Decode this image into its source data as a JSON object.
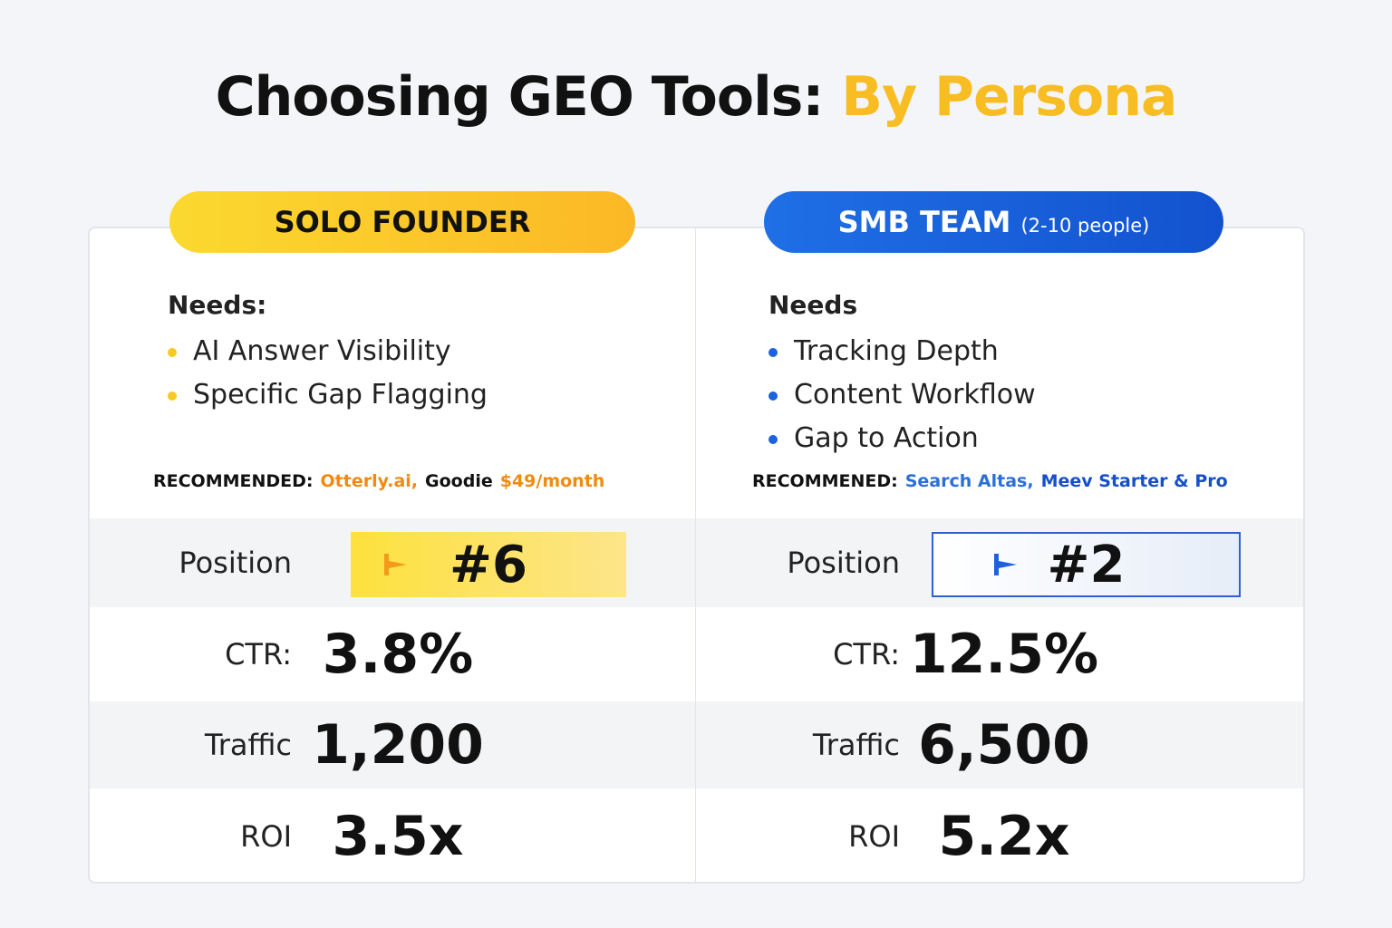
{
  "header": {
    "title": "Choosing GEO Tools:",
    "title_highlight": "By Persona"
  },
  "personas": [
    {
      "badge": "SOLO FOUNDER",
      "needs_label": "Needs:",
      "needs": [
        "AI Answer Visibility",
        "Specific Gap Flagging"
      ],
      "recommended_label": "RECOMMENDED:",
      "recommended": [
        "Otterly.ai,",
        "Goodie",
        "$49/month"
      ],
      "metrics": [
        [
          "Position",
          "#6"
        ],
        [
          "CTR:",
          "3.8%"
        ],
        [
          "Traffic",
          "1,200"
        ],
        [
          "ROI",
          "3.5x"
        ]
      ]
    },
    {
      "badge": "SMB TEAM",
      "badge_note": "(2-10 people)",
      "needs_label": "Needs",
      "needs": [
        "Tracking Depth",
        "Content Workflow",
        "Gap to Action"
      ],
      "recommended_label": "RECOMMENED:",
      "recommended": [
        "Search Altas,",
        "Meev Starter & Pro"
      ],
      "metrics": [
        [
          "Position",
          "#2"
        ],
        [
          "CTR:",
          "12.5%"
        ],
        [
          "Traffic",
          "6,500"
        ],
        [
          "ROI",
          "5.2x"
        ]
      ]
    }
  ]
}
